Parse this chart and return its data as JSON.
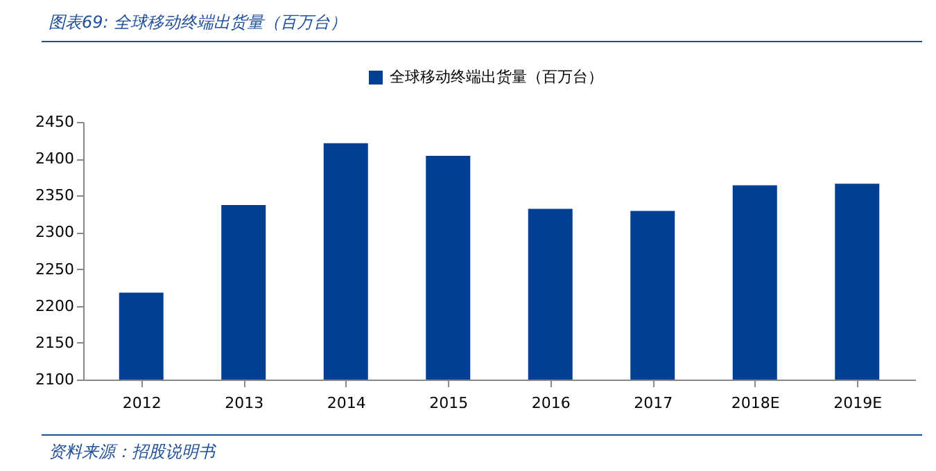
{
  "chart_data": {
    "type": "bar",
    "title": "图表69: 全球移动终端出货量（百万台）",
    "categories": [
      "2012",
      "2013",
      "2014",
      "2015",
      "2016",
      "2017",
      "2018E",
      "2019E"
    ],
    "series": [
      {
        "name": "全球移动终端出货量（百万台）",
        "color": "#003f94",
        "values": [
          2218,
          2337,
          2421,
          2404,
          2332,
          2329,
          2364,
          2366
        ]
      }
    ],
    "ylim": [
      2100,
      2450
    ],
    "yticks": [
      2100,
      2150,
      2200,
      2250,
      2300,
      2350,
      2400,
      2450
    ],
    "grid": false,
    "legend": "top",
    "annotations": [
      "资料来源：招股说明书"
    ]
  }
}
